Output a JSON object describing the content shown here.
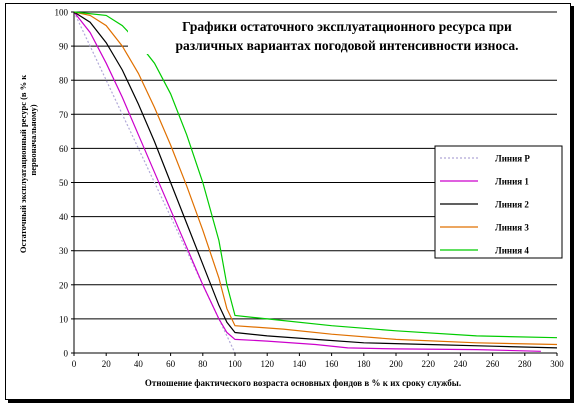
{
  "chart_data": {
    "type": "line",
    "title_line1": "Графики остаточного эксплуатационного ресурса при",
    "title_line2": "различных вариантах погодовой интенсивности износа.",
    "xlabel": "Отношение фактического возраста основных фондов в %  к их сроку службы.",
    "ylabel_line1": "Остаточный эксплуатационный ресурс (в % к",
    "ylabel_line2": "первоначальному)",
    "xlim": [
      0,
      300
    ],
    "ylim": [
      0,
      100
    ],
    "x_ticks": [
      0,
      20,
      40,
      60,
      80,
      100,
      120,
      140,
      160,
      180,
      200,
      220,
      240,
      260,
      280,
      300
    ],
    "y_ticks": [
      0,
      10,
      20,
      30,
      40,
      50,
      60,
      70,
      80,
      90,
      100
    ],
    "grid": "horizontal",
    "legend_position": "right",
    "series": [
      {
        "name": "Линия Р",
        "color": "#b0a8d8",
        "dash": "2,2",
        "points": [
          [
            0,
            100
          ],
          [
            10,
            90
          ],
          [
            20,
            80
          ],
          [
            30,
            70
          ],
          [
            40,
            60
          ],
          [
            50,
            50
          ],
          [
            60,
            40
          ],
          [
            70,
            30
          ],
          [
            80,
            20
          ],
          [
            90,
            10
          ],
          [
            100,
            0
          ]
        ]
      },
      {
        "name": "Линия 1",
        "color": "#cc00cc",
        "dash": "",
        "points": [
          [
            0,
            100
          ],
          [
            10,
            94
          ],
          [
            20,
            85
          ],
          [
            30,
            75
          ],
          [
            40,
            64
          ],
          [
            50,
            53
          ],
          [
            60,
            42
          ],
          [
            70,
            31
          ],
          [
            80,
            20
          ],
          [
            90,
            10
          ],
          [
            95,
            6
          ],
          [
            100,
            4
          ],
          [
            120,
            3.5
          ],
          [
            150,
            2.5
          ],
          [
            170,
            1.5
          ],
          [
            200,
            1.2
          ],
          [
            250,
            1
          ],
          [
            290,
            0.5
          ]
        ]
      },
      {
        "name": "Линия 2",
        "color": "#000000",
        "dash": "",
        "points": [
          [
            0,
            100
          ],
          [
            10,
            97
          ],
          [
            20,
            91
          ],
          [
            30,
            83
          ],
          [
            40,
            73
          ],
          [
            50,
            62
          ],
          [
            60,
            50
          ],
          [
            70,
            38
          ],
          [
            80,
            26
          ],
          [
            90,
            14
          ],
          [
            95,
            9
          ],
          [
            100,
            6
          ],
          [
            120,
            5
          ],
          [
            150,
            4
          ],
          [
            180,
            3
          ],
          [
            220,
            2.5
          ],
          [
            260,
            2
          ],
          [
            300,
            1.5
          ]
        ]
      },
      {
        "name": "Линия 3",
        "color": "#e07000",
        "dash": "",
        "points": [
          [
            0,
            100
          ],
          [
            10,
            99
          ],
          [
            20,
            96
          ],
          [
            30,
            90
          ],
          [
            40,
            82
          ],
          [
            50,
            72
          ],
          [
            60,
            61
          ],
          [
            70,
            49
          ],
          [
            80,
            36
          ],
          [
            90,
            22
          ],
          [
            95,
            13
          ],
          [
            100,
            8
          ],
          [
            130,
            7
          ],
          [
            160,
            5.5
          ],
          [
            200,
            4
          ],
          [
            250,
            3
          ],
          [
            300,
            2.5
          ]
        ]
      },
      {
        "name": "Линия 4",
        "color": "#00cc00",
        "dash": "",
        "points": [
          [
            0,
            100
          ],
          [
            20,
            99
          ],
          [
            30,
            96
          ],
          [
            40,
            91
          ],
          [
            50,
            85
          ],
          [
            60,
            76
          ],
          [
            70,
            64
          ],
          [
            80,
            50
          ],
          [
            90,
            33
          ],
          [
            95,
            20
          ],
          [
            100,
            11
          ],
          [
            120,
            10
          ],
          [
            160,
            8
          ],
          [
            200,
            6.5
          ],
          [
            250,
            5
          ],
          [
            300,
            4.5
          ]
        ]
      }
    ]
  }
}
